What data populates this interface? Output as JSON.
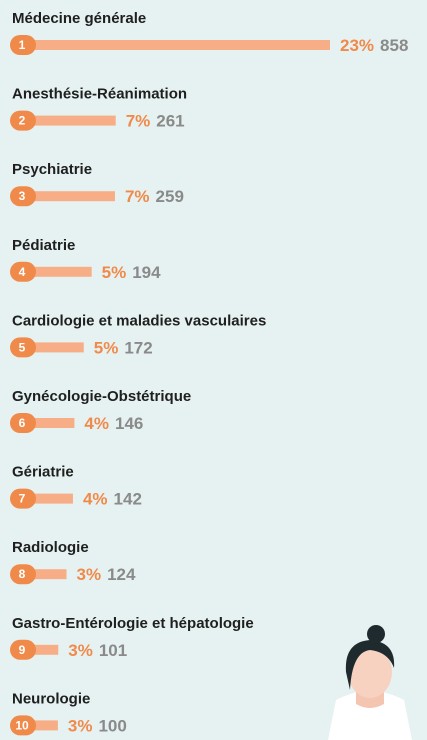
{
  "chart_data": {
    "type": "bar",
    "categories": [
      "Médecine générale",
      "Anesthésie-Réanimation",
      "Psychiatrie",
      "Pédiatrie",
      "Cardiologie et maladies vasculaires",
      "Gynécologie-Obstétrique",
      "Gériatrie",
      "Radiologie",
      "Gastro-Entérologie et hépatologie",
      "Neurologie"
    ],
    "ranks": [
      1,
      2,
      3,
      4,
      5,
      6,
      7,
      8,
      9,
      10
    ],
    "values": [
      858,
      261,
      259,
      194,
      172,
      146,
      142,
      124,
      101,
      100
    ],
    "percent_values": [
      23,
      7,
      7,
      5,
      5,
      4,
      4,
      3,
      3,
      3
    ],
    "percent_labels": [
      "23%",
      "7%",
      "7%",
      "5%",
      "5%",
      "4%",
      "4%",
      "3%",
      "3%",
      "3%"
    ],
    "color": "#f7ae86",
    "badge_color": "#f08a4b"
  }
}
